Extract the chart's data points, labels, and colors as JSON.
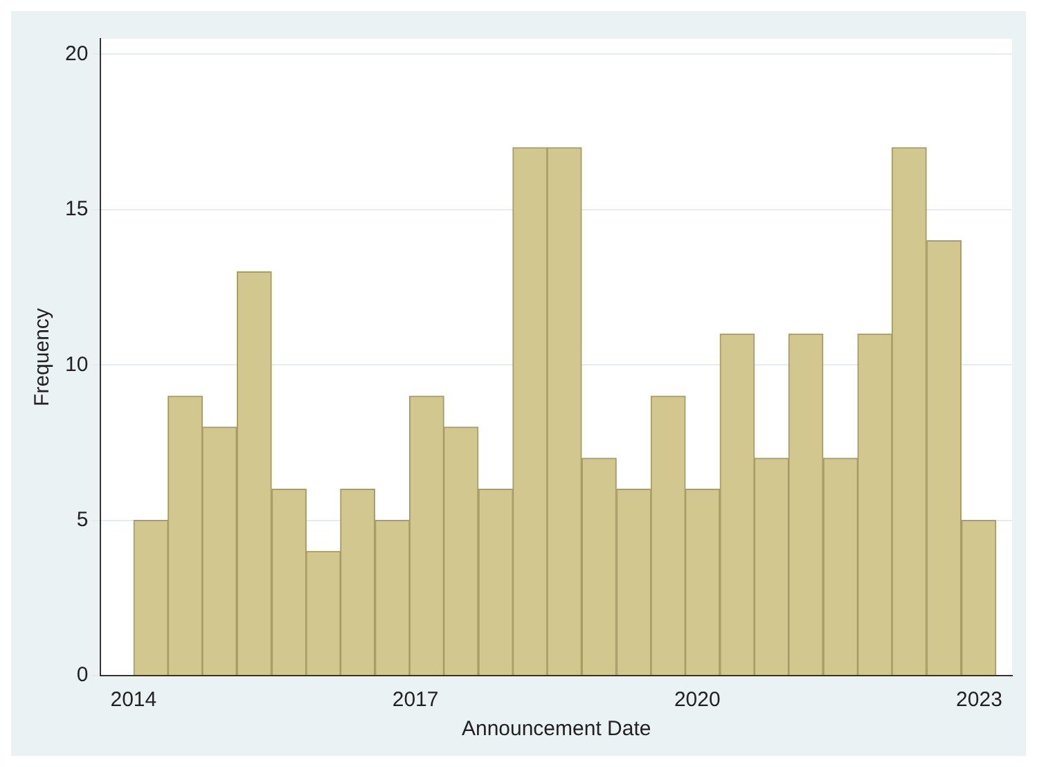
{
  "chart_data": {
    "type": "histogram",
    "xlabel": "Announcement Date",
    "ylabel": "Frequency",
    "bins": [
      2014,
      2014.37,
      2014.73,
      2015.1,
      2015.47,
      2015.84,
      2016.2,
      2016.57,
      2016.94,
      2017.3,
      2017.67,
      2018.04,
      2018.4,
      2018.77,
      2019.14,
      2019.51,
      2019.87,
      2020.24,
      2020.61,
      2020.97,
      2021.34,
      2021.71,
      2022.07,
      2022.44,
      2022.81,
      2023.18
    ],
    "values": [
      5,
      9,
      8,
      13,
      6,
      4,
      6,
      5,
      9,
      8,
      6,
      17,
      17,
      7,
      6,
      9,
      6,
      11,
      7,
      11,
      7,
      11,
      17,
      14,
      5
    ],
    "color": "#d2c78e",
    "xlim": [
      2013.65,
      2023.35
    ],
    "xticks": [
      2014,
      2017,
      2020,
      2023
    ],
    "ylim": [
      0,
      20.5
    ],
    "yticks": [
      0,
      5,
      10,
      15,
      20
    ],
    "grid": "y",
    "legend": false
  }
}
